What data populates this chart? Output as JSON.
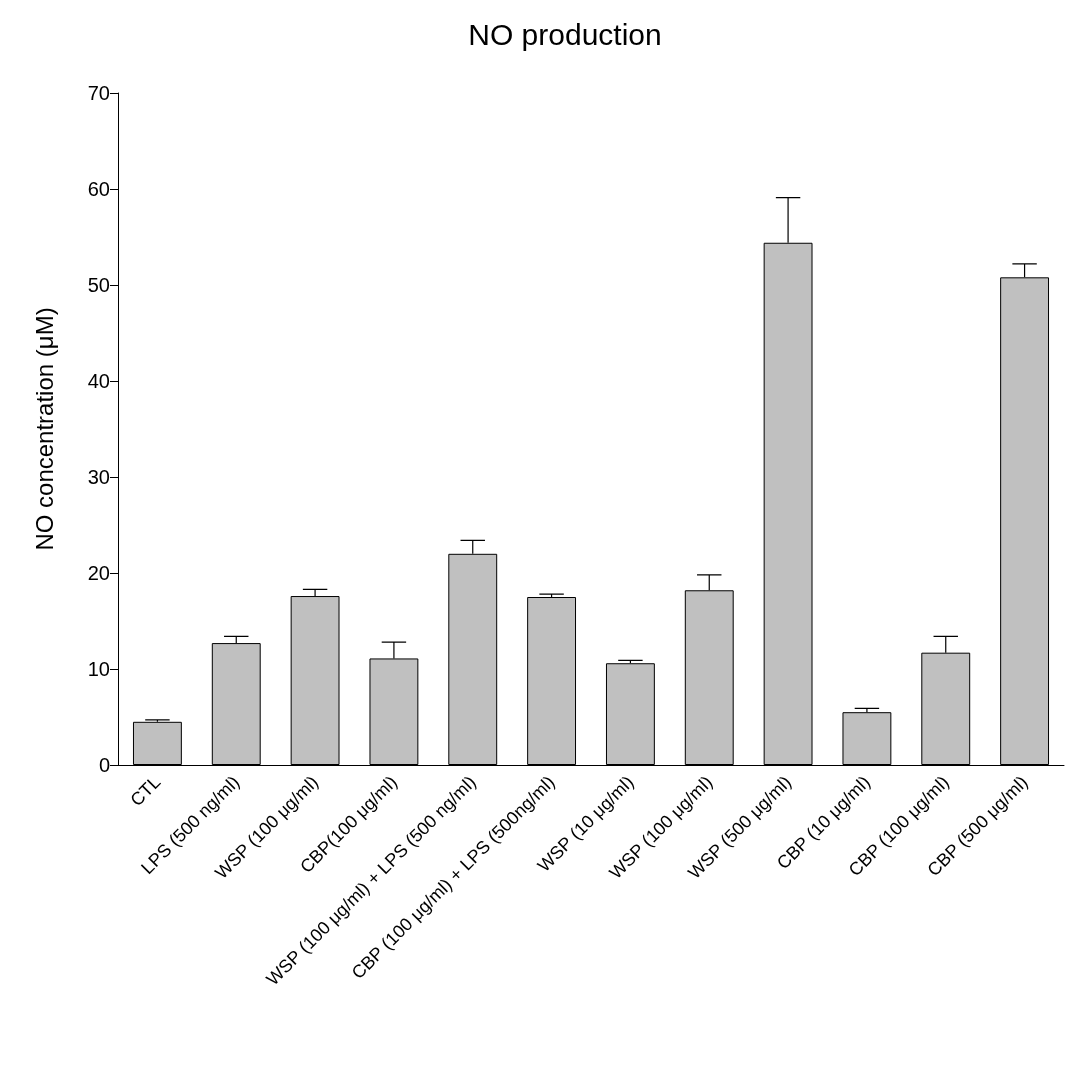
{
  "chart_data": {
    "type": "bar",
    "title": "NO production",
    "ylabel": "NO concentration (μM)",
    "categories": [
      "CTL",
      "LPS (500 ng/ml)",
      "WSP (100 μg/ml)",
      "CBP(100 μg/ml)",
      "WSP (100 μg/ml) + LPS (500 ng/ml)",
      "CBP (100 μg/ml) + LPS (500ng/ml)",
      "WSP (10 μg/ml)",
      "WSP (100 μg/ml)",
      "WSP (500 μg/ml)",
      "CBP (10 μg/ml)",
      "CBP (100 μg/ml)",
      "CBP (500 μg/ml)"
    ],
    "values": [
      4.5,
      12.7,
      17.6,
      11.1,
      22.0,
      17.5,
      10.6,
      18.2,
      54.4,
      5.5,
      11.7,
      50.8
    ],
    "errors": [
      [
        4.5,
        4.7
      ],
      [
        12.7,
        13.4
      ],
      [
        17.6,
        18.3
      ],
      [
        11.1,
        12.8
      ],
      [
        22.0,
        23.4
      ],
      [
        17.5,
        17.8
      ],
      [
        10.6,
        10.9
      ],
      [
        18.2,
        19.8
      ],
      [
        54.4,
        59.1
      ],
      [
        5.5,
        5.9
      ],
      [
        11.7,
        13.4
      ],
      [
        50.8,
        52.2
      ]
    ],
    "color": "#c0c0c0",
    "ylim": [
      0,
      70
    ],
    "yticks": [
      0,
      10,
      20,
      30,
      40,
      50,
      60,
      70
    ],
    "grid": false
  }
}
